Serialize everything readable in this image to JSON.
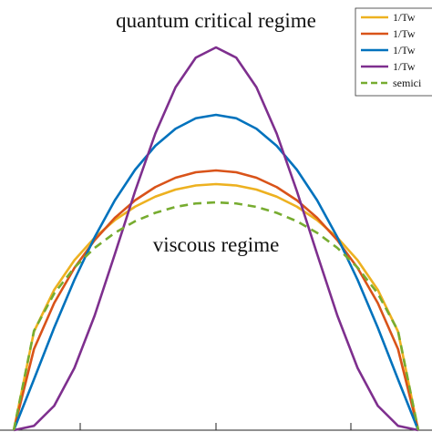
{
  "chart_data": {
    "type": "line",
    "annotations": [
      "quantum critical regime",
      "viscous regime"
    ],
    "x": [
      -1,
      -0.9,
      -0.8,
      -0.7,
      -0.6,
      -0.5,
      -0.4,
      -0.3,
      -0.2,
      -0.1,
      0,
      0.1,
      0.2,
      0.3,
      0.4,
      0.5,
      0.6,
      0.7,
      0.8,
      0.9,
      1
    ],
    "xlim": [
      -1.068,
      1.068
    ],
    "ylim": [
      0,
      1.888
    ],
    "legend": "upper right",
    "series": [
      {
        "name": "1/Tw",
        "color": "#EDB120",
        "dash": false,
        "values": [
          0,
          0.433,
          0.616,
          0.746,
          0.845,
          0.922,
          0.981,
          1.025,
          1.056,
          1.074,
          1.08,
          1.074,
          1.056,
          1.025,
          0.981,
          0.922,
          0.845,
          0.746,
          0.616,
          0.433,
          0
        ]
      },
      {
        "name": "1/Tw",
        "color": "#D95319",
        "dash": false,
        "values": [
          0,
          0.356,
          0.558,
          0.712,
          0.834,
          0.932,
          1.009,
          1.067,
          1.108,
          1.132,
          1.14,
          1.132,
          1.108,
          1.067,
          1.009,
          0.932,
          0.834,
          0.712,
          0.558,
          0.356,
          0
        ]
      },
      {
        "name": "1/Tw",
        "color": "#0072BD",
        "dash": false,
        "values": [
          0,
          0.223,
          0.45,
          0.66,
          0.847,
          1.009,
          1.143,
          1.248,
          1.323,
          1.369,
          1.384,
          1.369,
          1.323,
          1.248,
          1.143,
          1.009,
          0.847,
          0.66,
          0.45,
          0.223,
          0
        ]
      },
      {
        "name": "1/Tw",
        "color": "#7E2F8E",
        "dash": false,
        "values": [
          0,
          0.019,
          0.107,
          0.273,
          0.503,
          0.773,
          1.049,
          1.302,
          1.505,
          1.635,
          1.68,
          1.635,
          1.505,
          1.302,
          1.049,
          0.773,
          0.503,
          0.273,
          0.107,
          0.019,
          0
        ]
      },
      {
        "name": "semici",
        "color": "#77AC30",
        "dash": true,
        "values": [
          0,
          0.436,
          0.6,
          0.714,
          0.8,
          0.866,
          0.917,
          0.954,
          0.98,
          0.995,
          1,
          0.995,
          0.98,
          0.954,
          0.917,
          0.866,
          0.8,
          0.714,
          0.6,
          0.436,
          0
        ]
      }
    ]
  }
}
